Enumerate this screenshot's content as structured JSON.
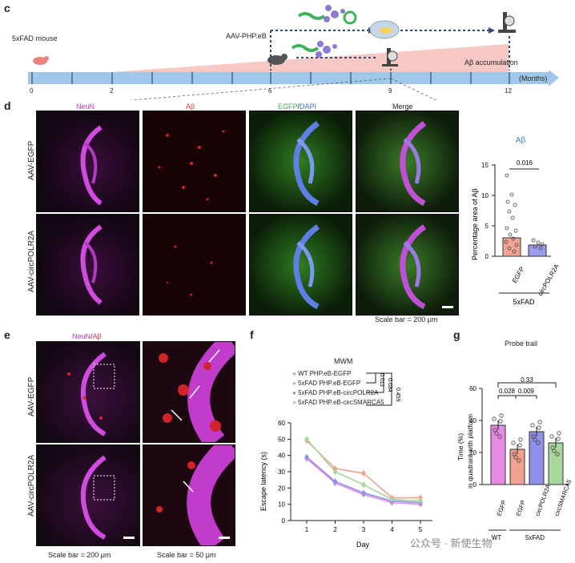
{
  "panels": {
    "c": "c",
    "d": "d",
    "e": "e",
    "f": "f",
    "g": "g"
  },
  "timeline": {
    "mouse_label": "5xFAD mouse",
    "vector_label": "AAV-PHP.eB",
    "accumulation_label": "Aβ accumulation",
    "unit_label": "(Months)",
    "ticks": [
      "0",
      "2",
      "6",
      "9",
      "12"
    ]
  },
  "panel_d": {
    "col_headers": {
      "neun": "NeuN",
      "abeta": "Aβ",
      "egfp": "EGFP",
      "slash": "/",
      "dapi": "DAPI",
      "merge": "Merge"
    },
    "row_labels": [
      "AAV-EGFP",
      "AAV-circPOLR2A"
    ],
    "scale_bar": "Scale bar = 200 μm"
  },
  "panel_d_chart": {
    "title": "Aβ",
    "ylabel": "Percentage area of Aβ",
    "yticks": [
      "0",
      "5",
      "10",
      "15"
    ],
    "categories": [
      "EGFP",
      "circPOLR2A"
    ],
    "group_label": "5xFAD",
    "pvalue": "0.016",
    "colors": {
      "egfp": "#f1a493",
      "circ": "#9b9cf0"
    }
  },
  "panel_e": {
    "title_neun": "NeuN",
    "title_sep": "/",
    "title_abeta": "Aβ",
    "row_labels": [
      "AAV-EGFP",
      "AAV-circPOLR2A"
    ],
    "scale_left": "Scale bar = 200 μm",
    "scale_right": "Scale bar = 50 μm"
  },
  "panel_f": {
    "title": "MWM",
    "legend": [
      {
        "name": "WT PHP.eB-EGFP",
        "color": "#e58be3"
      },
      {
        "name": "5xFAD PHP.eB-EGFP",
        "color": "#f2a08f"
      },
      {
        "name": "5xFAD PHP.eB-circPOLR2A",
        "color": "#8f8fe8"
      },
      {
        "name": "5xFAD PHP.eB-circSMARCA5",
        "color": "#a8d69c"
      }
    ],
    "pvalues": [
      "0.011",
      "0.034",
      "0.459"
    ],
    "ylabel": "Escape latency (s)",
    "xlabel": "Day",
    "xticks": [
      "1",
      "2",
      "3",
      "4",
      "5"
    ],
    "yticks": [
      "0",
      "10",
      "20",
      "30",
      "40",
      "50",
      "60"
    ]
  },
  "chart_data": {
    "type": "line",
    "title": "MWM",
    "xlabel": "Day",
    "ylabel": "Escape latency (s)",
    "x": [
      1,
      2,
      3,
      4,
      5
    ],
    "ylim": [
      0,
      60
    ],
    "series": [
      {
        "name": "WT PHP.eB-EGFP",
        "values": [
          38,
          23,
          16,
          11,
          10
        ]
      },
      {
        "name": "5xFAD PHP.eB-EGFP",
        "values": [
          49,
          32,
          29,
          14,
          14
        ]
      },
      {
        "name": "5xFAD PHP.eB-circPOLR2A",
        "values": [
          39,
          24,
          17,
          12,
          11
        ]
      },
      {
        "name": "5xFAD PHP.eB-circSMARCA5",
        "values": [
          50,
          30,
          22,
          13,
          12
        ]
      }
    ]
  },
  "panel_g": {
    "title": "Probe trail",
    "ylabel1": "Time (%)",
    "ylabel2": "in quadrant with platform",
    "yticks": [
      "0",
      "20",
      "40",
      "60"
    ],
    "categories": [
      "EGFP",
      "EGFP",
      "circPOLR2A",
      "circSMARCA5"
    ],
    "means": [
      37,
      22,
      33,
      26
    ],
    "group_wt": "WT",
    "group_fad": "5xFAD",
    "pvalues": [
      "0.33",
      "0.028",
      "0.009"
    ],
    "colors": [
      "#e58be3",
      "#f2a08f",
      "#8f8fe8",
      "#a8d69c"
    ]
  },
  "watermark": "公众号 · 新使生物"
}
